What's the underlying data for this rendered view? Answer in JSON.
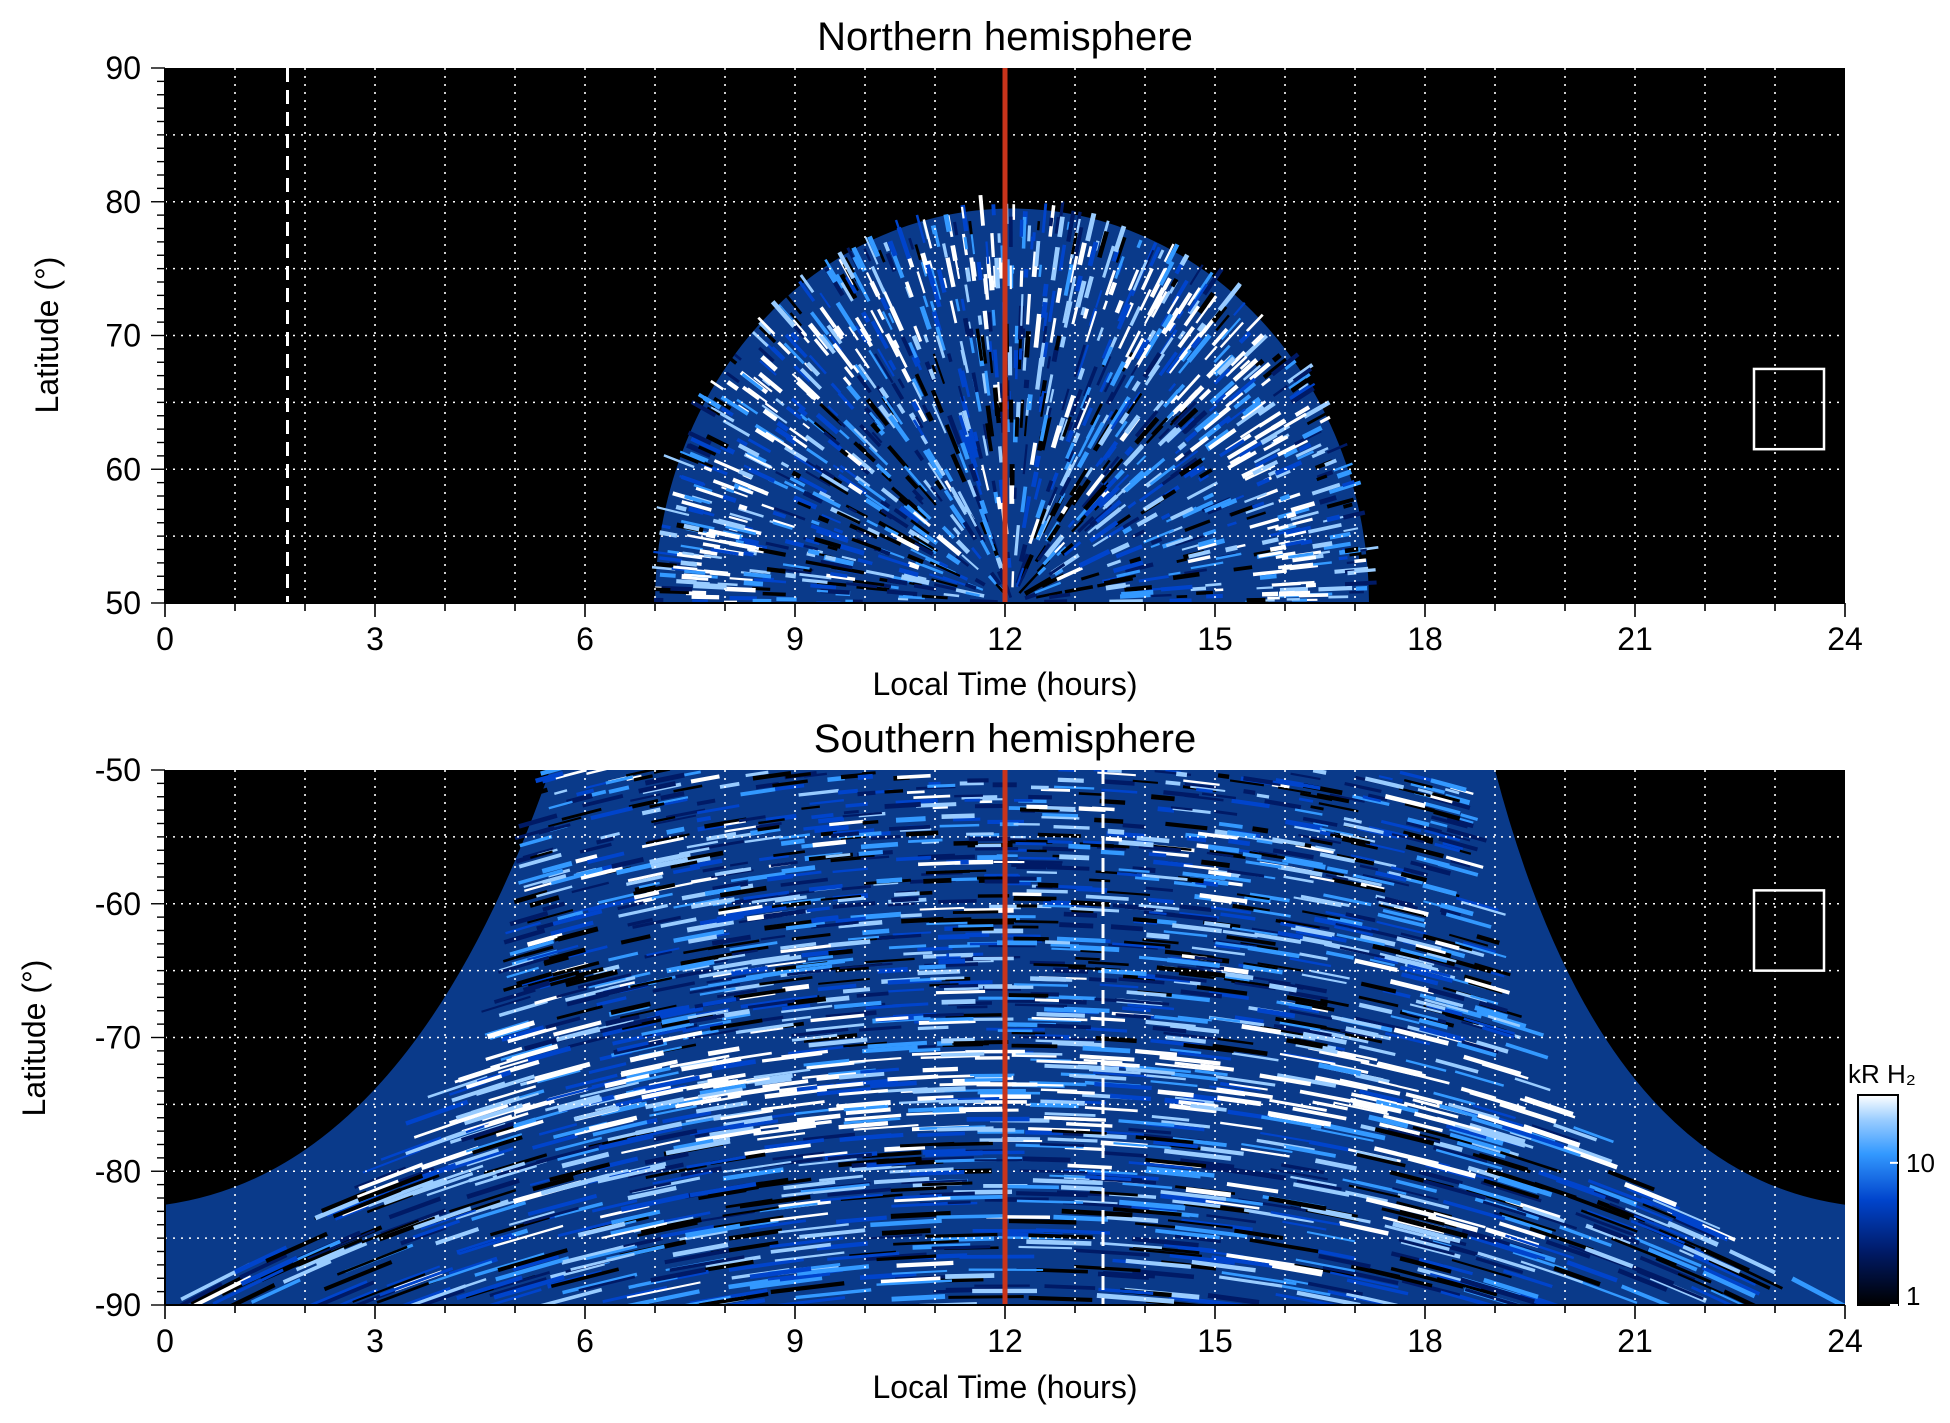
{
  "chart_data": [
    {
      "type": "heatmap",
      "title": "Northern hemisphere",
      "xlabel": "Local Time (hours)",
      "ylabel": "Latitude (°)",
      "xlim": [
        0,
        24
      ],
      "ylim": [
        50,
        90
      ],
      "xticks": [
        0,
        3,
        6,
        9,
        12,
        15,
        18,
        21,
        24
      ],
      "yticks": [
        50,
        60,
        70,
        80,
        90
      ],
      "grid": true,
      "noon_line_x": 12,
      "dashed_line_x": 1.75,
      "box": {
        "x": [
          22.7,
          23.7
        ],
        "y": [
          61.5,
          67.5
        ]
      },
      "emission_region": {
        "lt_range": [
          7,
          17.2
        ],
        "max_latitude": 79.5,
        "bright_oval_latitude": 70.5
      }
    },
    {
      "type": "heatmap",
      "title": "Southern hemisphere",
      "xlabel": "Local Time (hours)",
      "ylabel": "Latitude (°)",
      "xlim": [
        0,
        24
      ],
      "ylim": [
        -90,
        -50
      ],
      "xticks": [
        0,
        3,
        6,
        9,
        12,
        15,
        18,
        21,
        24
      ],
      "yticks": [
        -50,
        -60,
        -70,
        -80,
        -90
      ],
      "grid": true,
      "noon_line_x": 12,
      "dashed_line_x": 13.4,
      "box": {
        "x": [
          22.7,
          23.7
        ],
        "y": [
          -65,
          -59
        ]
      },
      "emission_region": {
        "lt_range_at_minus50": [
          5.5,
          19
        ],
        "lt_range_at_minus90": [
          0,
          24
        ],
        "bright_oval_latitude": -74
      }
    }
  ],
  "colorbar": {
    "label": "kR H₂",
    "scale": "log",
    "ticks": [
      "1",
      "10"
    ],
    "range": [
      1,
      30
    ],
    "colors": [
      "#000000",
      "#001a66",
      "#0044cc",
      "#3399ff",
      "#99ccff",
      "#ffffff"
    ]
  },
  "colors": {
    "noon_line": "#c8341b",
    "grid": "#ffffff",
    "background": "#000000"
  }
}
